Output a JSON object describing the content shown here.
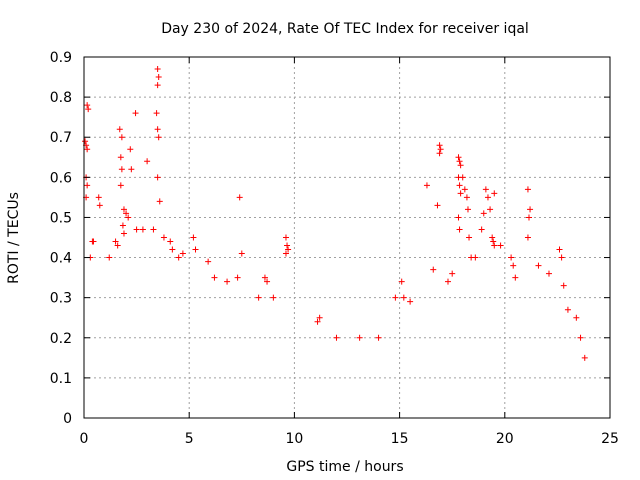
{
  "chart_data": {
    "type": "scatter",
    "title": "Day 230 of 2024, Rate Of TEC Index for receiver iqal",
    "xlabel": "GPS time / hours",
    "ylabel": "ROTI / TECUs",
    "xlim": [
      0,
      25
    ],
    "ylim": [
      0,
      0.9
    ],
    "xticks": [
      0,
      5,
      10,
      15,
      20,
      25
    ],
    "yticks": [
      0,
      0.1,
      0.2,
      0.3,
      0.4,
      0.5,
      0.6,
      0.7,
      0.8,
      0.9
    ],
    "grid": true,
    "marker": "plus",
    "color": "#ff0000",
    "series": [
      {
        "points": [
          [
            0.05,
            0.69
          ],
          [
            0.1,
            0.68
          ],
          [
            0.15,
            0.67
          ],
          [
            0.15,
            0.78
          ],
          [
            0.2,
            0.77
          ],
          [
            0.1,
            0.6
          ],
          [
            0.15,
            0.58
          ],
          [
            0.1,
            0.55
          ],
          [
            0.4,
            0.44
          ],
          [
            0.45,
            0.44
          ],
          [
            0.7,
            0.55
          ],
          [
            0.75,
            0.53
          ],
          [
            1.5,
            0.44
          ],
          [
            1.6,
            0.43
          ],
          [
            1.2,
            0.4
          ],
          [
            0.3,
            0.4
          ],
          [
            1.7,
            0.72
          ],
          [
            1.8,
            0.7
          ],
          [
            1.75,
            0.65
          ],
          [
            1.8,
            0.62
          ],
          [
            1.75,
            0.58
          ],
          [
            2.45,
            0.76
          ],
          [
            2.2,
            0.67
          ],
          [
            2.25,
            0.62
          ],
          [
            1.9,
            0.52
          ],
          [
            2.0,
            0.51
          ],
          [
            2.1,
            0.5
          ],
          [
            1.85,
            0.48
          ],
          [
            1.9,
            0.46
          ],
          [
            2.5,
            0.47
          ],
          [
            2.8,
            0.47
          ],
          [
            3.0,
            0.64
          ],
          [
            3.5,
            0.87
          ],
          [
            3.55,
            0.85
          ],
          [
            3.5,
            0.83
          ],
          [
            3.45,
            0.76
          ],
          [
            3.5,
            0.72
          ],
          [
            3.55,
            0.7
          ],
          [
            3.5,
            0.6
          ],
          [
            3.6,
            0.54
          ],
          [
            3.3,
            0.47
          ],
          [
            3.8,
            0.45
          ],
          [
            4.1,
            0.44
          ],
          [
            4.2,
            0.42
          ],
          [
            4.5,
            0.4
          ],
          [
            4.7,
            0.41
          ],
          [
            5.2,
            0.45
          ],
          [
            5.3,
            0.42
          ],
          [
            5.9,
            0.39
          ],
          [
            6.2,
            0.35
          ],
          [
            6.8,
            0.34
          ],
          [
            7.3,
            0.35
          ],
          [
            7.4,
            0.55
          ],
          [
            7.5,
            0.41
          ],
          [
            8.3,
            0.3
          ],
          [
            8.6,
            0.35
          ],
          [
            8.7,
            0.34
          ],
          [
            9.0,
            0.3
          ],
          [
            9.6,
            0.45
          ],
          [
            9.65,
            0.43
          ],
          [
            9.7,
            0.42
          ],
          [
            9.6,
            0.41
          ],
          [
            11.1,
            0.24
          ],
          [
            11.2,
            0.25
          ],
          [
            12.0,
            0.2
          ],
          [
            13.1,
            0.2
          ],
          [
            14.0,
            0.2
          ],
          [
            14.8,
            0.3
          ],
          [
            15.1,
            0.34
          ],
          [
            15.2,
            0.3
          ],
          [
            15.5,
            0.29
          ],
          [
            16.3,
            0.58
          ],
          [
            16.6,
            0.37
          ],
          [
            16.8,
            0.53
          ],
          [
            16.9,
            0.68
          ],
          [
            16.95,
            0.67
          ],
          [
            16.9,
            0.66
          ],
          [
            17.3,
            0.34
          ],
          [
            17.5,
            0.36
          ],
          [
            17.8,
            0.65
          ],
          [
            17.85,
            0.64
          ],
          [
            17.9,
            0.63
          ],
          [
            17.8,
            0.6
          ],
          [
            17.85,
            0.58
          ],
          [
            17.9,
            0.56
          ],
          [
            17.8,
            0.5
          ],
          [
            17.85,
            0.47
          ],
          [
            18.0,
            0.6
          ],
          [
            18.1,
            0.57
          ],
          [
            18.2,
            0.55
          ],
          [
            18.25,
            0.52
          ],
          [
            18.3,
            0.45
          ],
          [
            18.4,
            0.4
          ],
          [
            18.9,
            0.47
          ],
          [
            18.6,
            0.4
          ],
          [
            19.0,
            0.51
          ],
          [
            19.1,
            0.57
          ],
          [
            19.2,
            0.55
          ],
          [
            19.3,
            0.52
          ],
          [
            19.4,
            0.45
          ],
          [
            19.45,
            0.44
          ],
          [
            19.5,
            0.43
          ],
          [
            19.5,
            0.56
          ],
          [
            19.8,
            0.43
          ],
          [
            20.3,
            0.4
          ],
          [
            20.4,
            0.38
          ],
          [
            20.5,
            0.35
          ],
          [
            21.1,
            0.57
          ],
          [
            21.2,
            0.52
          ],
          [
            21.15,
            0.5
          ],
          [
            21.1,
            0.45
          ],
          [
            21.6,
            0.38
          ],
          [
            22.1,
            0.36
          ],
          [
            22.6,
            0.42
          ],
          [
            22.7,
            0.4
          ],
          [
            22.8,
            0.33
          ],
          [
            23.0,
            0.27
          ],
          [
            23.4,
            0.25
          ],
          [
            23.6,
            0.2
          ],
          [
            23.8,
            0.15
          ]
        ]
      }
    ]
  }
}
